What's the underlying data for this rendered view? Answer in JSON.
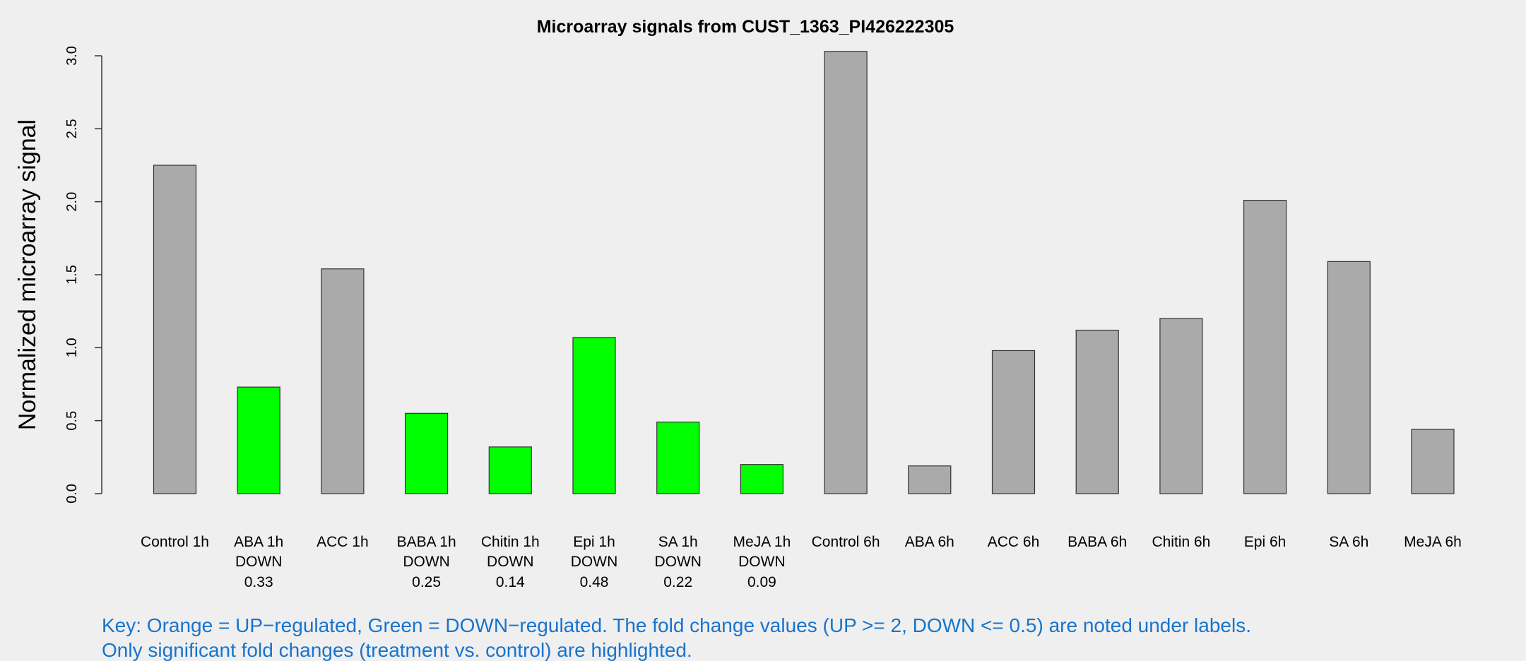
{
  "chart_data": {
    "type": "bar",
    "title": "Microarray signals from CUST_1363_PI426222305",
    "xlabel": "",
    "ylabel": "Normalized microarray signal",
    "ylim": [
      0,
      3.0
    ],
    "yticks": [
      "0.0",
      "0.5",
      "1.0",
      "1.5",
      "2.0",
      "2.5",
      "3.0"
    ],
    "grid": false,
    "categories": [
      "Control 1h",
      "ABA 1h",
      "ACC 1h",
      "BABA 1h",
      "Chitin 1h",
      "Epi 1h",
      "SA 1h",
      "MeJA 1h",
      "Control 6h",
      "ABA 6h",
      "ACC 6h",
      "BABA 6h",
      "Chitin 6h",
      "Epi 6h",
      "SA 6h",
      "MeJA 6h"
    ],
    "values": [
      2.25,
      0.73,
      1.54,
      0.55,
      0.32,
      1.07,
      0.49,
      0.2,
      3.03,
      0.19,
      0.98,
      1.12,
      1.2,
      2.01,
      1.59,
      0.44
    ],
    "regulation": [
      "",
      "DOWN",
      "",
      "DOWN",
      "DOWN",
      "DOWN",
      "DOWN",
      "DOWN",
      "",
      "",
      "",
      "",
      "",
      "",
      "",
      ""
    ],
    "fold_change": [
      "",
      "0.33",
      "",
      "0.25",
      "0.14",
      "0.48",
      "0.22",
      "0.09",
      "",
      "",
      "",
      "",
      "",
      "",
      "",
      ""
    ],
    "colors": {
      "neutral": "#aaaaaa",
      "down": "#00ff00",
      "up": "#ffa500",
      "key_text": "#1874cd",
      "background": "#efefef"
    },
    "key_lines": [
      "Key: Orange = UP−regulated, Green = DOWN−regulated. The fold change values (UP >= 2, DOWN <= 0.5) are noted under labels.",
      "Only significant fold changes (treatment vs. control) are highlighted."
    ]
  }
}
